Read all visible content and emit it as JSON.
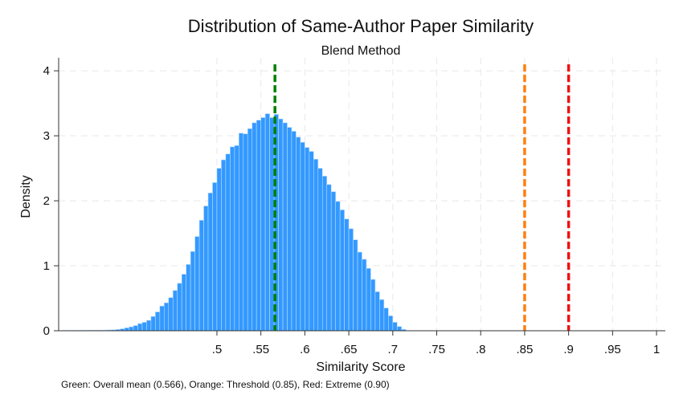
{
  "chart_data": {
    "type": "bar",
    "title": "Distribution of Same-Author Paper Similarity",
    "subtitle": "Blend Method",
    "xlabel": "Similarity Score",
    "ylabel": "Density",
    "xlim": [
      0.32,
      1.01
    ],
    "ylim": [
      0,
      4.2
    ],
    "x_ticks": [
      0.5,
      0.55,
      0.6,
      0.65,
      0.7,
      0.75,
      0.8,
      0.85,
      0.9,
      0.95,
      1
    ],
    "x_tick_labels": [
      ".5",
      ".55",
      ".6",
      ".65",
      ".7",
      ".75",
      ".8",
      ".85",
      ".9",
      ".95",
      "1"
    ],
    "y_ticks": [
      0,
      1,
      2,
      3,
      4
    ],
    "y_tick_labels": [
      "0",
      "1",
      "2",
      "3",
      "4"
    ],
    "grid": true,
    "bar_color": "#3399ff",
    "bin_width": 0.005,
    "bins_start": 0.325,
    "values": [
      0.005,
      0.005,
      0.005,
      0.006,
      0.006,
      0.007,
      0.007,
      0.008,
      0.009,
      0.01,
      0.012,
      0.014,
      0.02,
      0.03,
      0.045,
      0.06,
      0.08,
      0.11,
      0.13,
      0.16,
      0.22,
      0.29,
      0.38,
      0.43,
      0.51,
      0.62,
      0.73,
      0.87,
      1.02,
      1.22,
      1.45,
      1.7,
      1.92,
      2.12,
      2.28,
      2.5,
      2.63,
      2.72,
      2.83,
      2.85,
      3.04,
      3.03,
      3.11,
      3.2,
      3.24,
      3.28,
      3.34,
      3.28,
      3.33,
      3.26,
      3.2,
      3.13,
      3.07,
      2.98,
      2.9,
      2.82,
      2.76,
      2.64,
      2.5,
      2.38,
      2.25,
      2.14,
      1.99,
      1.86,
      1.72,
      1.57,
      1.4,
      1.21,
      1.1,
      0.96,
      0.79,
      0.6,
      0.48,
      0.35,
      0.23,
      0.13,
      0.065,
      0.02
    ],
    "reference_lines": [
      {
        "x": 0.566,
        "color": "#008000",
        "label": "Green: Overall mean (0.566)"
      },
      {
        "x": 0.85,
        "color": "#ff7f0e",
        "label": "Orange: Threshold (0.85)"
      },
      {
        "x": 0.9,
        "color": "#ee1111",
        "label": "Red: Extreme (0.90)"
      }
    ],
    "note": "Green: Overall mean (0.566), Orange: Threshold (0.85), Red: Extreme (0.90)"
  }
}
